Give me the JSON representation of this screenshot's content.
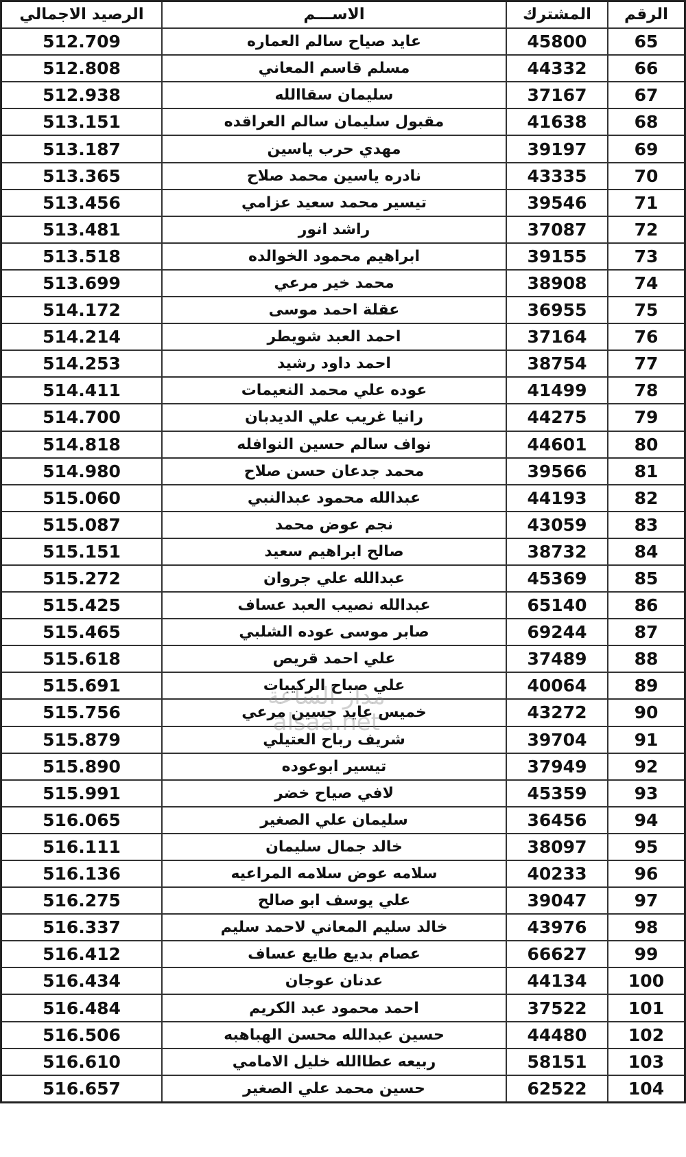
{
  "headers": {
    "number": "الرقم",
    "subscriber": "المشترك",
    "name": "الاســـم",
    "balance": "الرصيد الاجمالي"
  },
  "rows": [
    {
      "number": "65",
      "subscriber": "45800",
      "name": "عايد صياح سالم العماره",
      "balance": "512.709"
    },
    {
      "number": "66",
      "subscriber": "44332",
      "name": "مسلم قاسم المعاني",
      "balance": "512.808"
    },
    {
      "number": "67",
      "subscriber": "37167",
      "name": "سليمان سقاالله",
      "balance": "512.938"
    },
    {
      "number": "68",
      "subscriber": "41638",
      "name": "مقبول سليمان سالم العراقده",
      "balance": "513.151"
    },
    {
      "number": "69",
      "subscriber": "39197",
      "name": "مهدي حرب ياسين",
      "balance": "513.187"
    },
    {
      "number": "70",
      "subscriber": "43335",
      "name": "نادره ياسين محمد صلاح",
      "balance": "513.365"
    },
    {
      "number": "71",
      "subscriber": "39546",
      "name": "تيسير محمد سعيد عزامي",
      "balance": "513.456"
    },
    {
      "number": "72",
      "subscriber": "37087",
      "name": "راشد انور",
      "balance": "513.481"
    },
    {
      "number": "73",
      "subscriber": "39155",
      "name": "ابراهيم محمود الخوالده",
      "balance": "513.518"
    },
    {
      "number": "74",
      "subscriber": "38908",
      "name": "محمد خير مرعي",
      "balance": "513.699"
    },
    {
      "number": "75",
      "subscriber": "36955",
      "name": "عقلة احمد موسى",
      "balance": "514.172"
    },
    {
      "number": "76",
      "subscriber": "37164",
      "name": "احمد العبد شويطر",
      "balance": "514.214"
    },
    {
      "number": "77",
      "subscriber": "38754",
      "name": "احمد داود رشيد",
      "balance": "514.253"
    },
    {
      "number": "78",
      "subscriber": "41499",
      "name": "عوده علي محمد النعيمات",
      "balance": "514.411"
    },
    {
      "number": "79",
      "subscriber": "44275",
      "name": "رانيا غريب علي الديدبان",
      "balance": "514.700"
    },
    {
      "number": "80",
      "subscriber": "44601",
      "name": "نواف سالم حسين النوافله",
      "balance": "514.818"
    },
    {
      "number": "81",
      "subscriber": "39566",
      "name": "محمد جدعان حسن صلاح",
      "balance": "514.980"
    },
    {
      "number": "82",
      "subscriber": "44193",
      "name": "عبدالله محمود عبدالنبي",
      "balance": "515.060"
    },
    {
      "number": "83",
      "subscriber": "43059",
      "name": "نجم عوض محمد",
      "balance": "515.087"
    },
    {
      "number": "84",
      "subscriber": "38732",
      "name": "صالح ابراهيم سعيد",
      "balance": "515.151"
    },
    {
      "number": "85",
      "subscriber": "45369",
      "name": "عبدالله علي جروان",
      "balance": "515.272"
    },
    {
      "number": "86",
      "subscriber": "65140",
      "name": "عبدالله نصيب العبد عساف",
      "balance": "515.425"
    },
    {
      "number": "87",
      "subscriber": "69244",
      "name": "صابر موسى عوده الشلبي",
      "balance": "515.465"
    },
    {
      "number": "88",
      "subscriber": "37489",
      "name": "علي احمد قريص",
      "balance": "515.618"
    },
    {
      "number": "89",
      "subscriber": "40064",
      "name": "علي صباح الركيبات",
      "balance": "515.691"
    },
    {
      "number": "90",
      "subscriber": "43272",
      "name": "خميس عايد حسين مرعي",
      "balance": "515.756"
    },
    {
      "number": "91",
      "subscriber": "39704",
      "name": "شريف رباح العتيلي",
      "balance": "515.879"
    },
    {
      "number": "92",
      "subscriber": "37949",
      "name": "تيسير ابوعوده",
      "balance": "515.890"
    },
    {
      "number": "93",
      "subscriber": "45359",
      "name": "لافي صياح خضر",
      "balance": "515.991"
    },
    {
      "number": "94",
      "subscriber": "36456",
      "name": "سليمان علي الصغير",
      "balance": "516.065"
    },
    {
      "number": "95",
      "subscriber": "38097",
      "name": "خالد جمال سليمان",
      "balance": "516.111"
    },
    {
      "number": "96",
      "subscriber": "40233",
      "name": "سلامه عوض سلامه المراعيه",
      "balance": "516.136"
    },
    {
      "number": "97",
      "subscriber": "39047",
      "name": "علي يوسف ابو صالح",
      "balance": "516.275"
    },
    {
      "number": "98",
      "subscriber": "43976",
      "name": "خالد سليم المعاني لاحمد سليم",
      "balance": "516.337"
    },
    {
      "number": "99",
      "subscriber": "66627",
      "name": "عصام بديع طايع عساف",
      "balance": "516.412"
    },
    {
      "number": "100",
      "subscriber": "44134",
      "name": "عدنان عوجان",
      "balance": "516.434"
    },
    {
      "number": "101",
      "subscriber": "37522",
      "name": "احمد محمود عبد الكريم",
      "balance": "516.484"
    },
    {
      "number": "102",
      "subscriber": "44480",
      "name": "حسين عبدالله محسن الهباهبه",
      "balance": "516.506"
    },
    {
      "number": "103",
      "subscriber": "58151",
      "name": "ربيعه عطاالله خليل الامامي",
      "balance": "516.610"
    },
    {
      "number": "104",
      "subscriber": "62522",
      "name": "حسين محمد علي الصغير",
      "balance": "516.657"
    }
  ],
  "watermark": {
    "arabic": "مدار الساعة",
    "latin": "alsaa.net"
  }
}
